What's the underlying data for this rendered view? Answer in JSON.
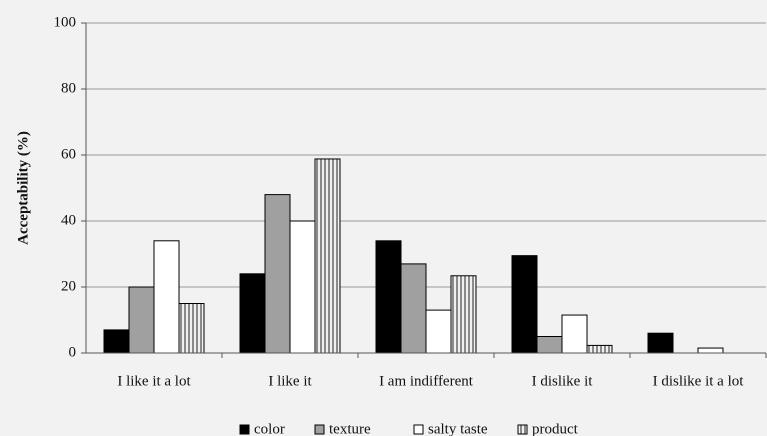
{
  "chart_data": {
    "type": "bar",
    "title": "",
    "xlabel": "",
    "ylabel": "Acceptability (%)",
    "ylim": [
      0,
      100
    ],
    "yticks": [
      "0",
      "20",
      "40",
      "60",
      "80",
      "100"
    ],
    "grid": true,
    "legend_position": "bottom",
    "categories": [
      "I like it a lot",
      "I like it",
      "I am indifferent",
      "I dislike it",
      "I dislike it a lot"
    ],
    "series": [
      {
        "name": "color",
        "fill": "#000000",
        "pattern": "solid",
        "values": [
          7,
          24,
          34,
          29.5,
          6
        ]
      },
      {
        "name": "texture",
        "fill": "#a0a0a0",
        "pattern": "solid",
        "values": [
          20,
          48,
          27,
          5,
          0
        ]
      },
      {
        "name": "salty taste",
        "fill": "#ffffff",
        "pattern": "solid",
        "values": [
          34,
          40,
          13,
          11.5,
          1.5
        ]
      },
      {
        "name": "product",
        "fill": "#b4b4b4",
        "pattern": "vertical-stripes",
        "values": [
          15,
          58.8,
          23.4,
          2.3,
          0
        ]
      }
    ]
  }
}
